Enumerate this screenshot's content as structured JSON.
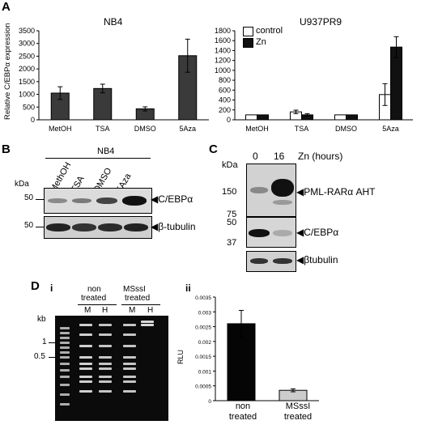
{
  "panel_letters": {
    "a": "A",
    "b": "B",
    "c": "C",
    "d": "D"
  },
  "sub_letters": {
    "i": "i",
    "ii": "ii"
  },
  "panelA": {
    "ylabel": "Relative C/EBPα expression",
    "nb4_title": "NB4",
    "u937_title": "U937PR9",
    "legend": {
      "control": "control",
      "zn": "Zn"
    }
  },
  "panelB": {
    "cell_line": "NB4",
    "kda": "kDa",
    "lanes": [
      "MethOH",
      "TSA",
      "DMSO",
      "5Aza"
    ],
    "markers": [
      "50",
      "50"
    ],
    "labels": {
      "cebpa": "C/EBPα",
      "tubulin": "β-tubulin"
    }
  },
  "panelC": {
    "kda": "kDa",
    "lanes": [
      "0",
      "16"
    ],
    "time_label": "Zn (hours)",
    "markers": [
      "150",
      "75",
      "50",
      "37"
    ],
    "labels": {
      "pml": "PML-RARα AHT",
      "cebpa": "C/EBPα",
      "tubulin": "βtubulin"
    }
  },
  "panelD": {
    "kb": "kb",
    "kb_markers": [
      "1",
      "0.5"
    ],
    "groups": [
      {
        "line1": "non",
        "line2": "treated"
      },
      {
        "line1": "MSssI",
        "line2": "treated"
      }
    ],
    "lanes": [
      "M",
      "H",
      "M",
      "H"
    ]
  },
  "chart_data": [
    {
      "type": "bar",
      "title": "NB4",
      "ylabel": "Relative C/EBPα expression",
      "categories": [
        "MetOH",
        "TSA",
        "DMSO",
        "5Aza"
      ],
      "values": [
        1050,
        1230,
        430,
        2520
      ],
      "errors": [
        250,
        170,
        80,
        650
      ],
      "ylim": [
        0,
        3500
      ],
      "yticks": [
        "0",
        "500",
        "1000",
        "1500",
        "2000",
        "2500",
        "3000",
        "3500"
      ],
      "colors": {
        "bar": "#3a3a3a"
      }
    },
    {
      "type": "bar",
      "title": "U937PR9",
      "categories": [
        "MetOH",
        "TSA",
        "DMSO",
        "5Aza"
      ],
      "series": [
        {
          "name": "control",
          "values": [
            100,
            160,
            100,
            510
          ],
          "errors": [
            0,
            35,
            0,
            220
          ]
        },
        {
          "name": "Zn",
          "values": [
            100,
            100,
            100,
            1470
          ],
          "errors": [
            0,
            25,
            0,
            210
          ]
        }
      ],
      "ylim": [
        0,
        1800
      ],
      "yticks": [
        "0",
        "200",
        "400",
        "600",
        "800",
        "1000",
        "1200",
        "1400",
        "1600",
        "1800"
      ],
      "legend": "top-left",
      "colors": {
        "control": "#ffffff",
        "zn": "#111111"
      }
    },
    {
      "type": "bar",
      "ylabel": "RLU",
      "categories": [
        "non treated",
        "MSssI treated"
      ],
      "category_lines": [
        [
          "non",
          "treated"
        ],
        [
          "MSssI",
          "treated"
        ]
      ],
      "values": [
        0.0026,
        0.00035
      ],
      "errors": [
        0.00045,
        5e-05
      ],
      "ylim": [
        0,
        0.0035
      ],
      "yticks": [
        "0",
        "0.0005",
        "0.001",
        "0.0015",
        "0.002",
        "0.0025",
        "0.003",
        "0.0035"
      ],
      "colors": {
        "non treated": "#050505",
        "MSssI treated": "#cccccc"
      }
    }
  ]
}
